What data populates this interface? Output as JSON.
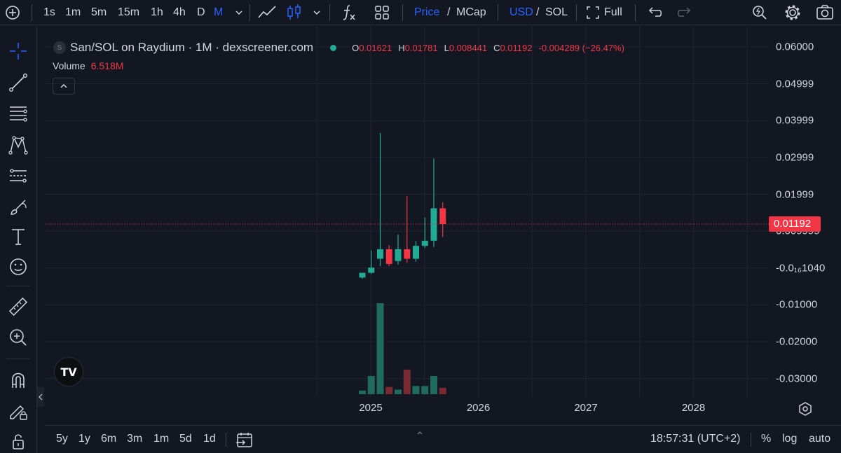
{
  "toolbar": {
    "intervals": [
      "1s",
      "1m",
      "5m",
      "15m",
      "1h",
      "4h",
      "D",
      "M"
    ],
    "active_interval": "M",
    "price_label": "Price",
    "slash": "/",
    "mcap_label": "MCap",
    "usd_label": "USD",
    "sol_label": "SOL",
    "full_label": "Full"
  },
  "legend": {
    "symbol_letter": "S",
    "title": "San/SOL on Raydium · 1M · dexscreener.com",
    "open_key": "O",
    "open": "0.01621",
    "high_key": "H",
    "high": "0.01781",
    "low_key": "L",
    "low": "0.008441",
    "close_key": "C",
    "close": "0.01192",
    "change": "-0.004289 (−26.47%)",
    "volume_label": "Volume",
    "volume_value": "6.518M"
  },
  "colors": {
    "up": "#22ab94",
    "down": "#f23645",
    "volume_up": "#1f6b5e",
    "volume_down": "#7a2a33",
    "accent": "#2962ff",
    "background": "#131722",
    "grid": "#1f2330"
  },
  "price_scale": {
    "ticks": [
      "0.06000",
      "0.04999",
      "0.03999",
      "0.02999",
      "0.01999",
      "0.009999",
      "-0.0₁₆1040",
      "-0.01000",
      "-0.02000",
      "-0.03000"
    ],
    "current_price": "0.01192"
  },
  "time_axis": {
    "ticks": [
      "2025",
      "2026",
      "2027",
      "2028"
    ]
  },
  "bottom_bar": {
    "ranges": [
      "5y",
      "1y",
      "6m",
      "3m",
      "1m",
      "5d",
      "1d"
    ],
    "clock": "18:57:31 (UTC+2)",
    "percent_label": "%",
    "log_label": "log",
    "auto_label": "auto"
  },
  "chart_data": {
    "type": "candlestick",
    "interval": "1M",
    "x": [
      "2024-12",
      "2025-01",
      "2025-02",
      "2025-03",
      "2025-04",
      "2025-05",
      "2025-06",
      "2025-07",
      "2025-08",
      "2025-09"
    ],
    "open": [
      -0.0026,
      -0.0013,
      0.0025,
      0.0051,
      0.0019,
      0.0051,
      0.0025,
      0.006,
      0.0074,
      0.0162
    ],
    "high": [
      -0.0016,
      0.0048,
      0.0366,
      0.0062,
      0.0091,
      0.0195,
      0.0073,
      0.0137,
      0.0297,
      0.0178
    ],
    "low": [
      -0.0029,
      -0.0016,
      0.0005,
      0.0005,
      0.0009,
      0.0014,
      0.0017,
      0.0054,
      0.0057,
      0.0084
    ],
    "close": [
      -0.0013,
      0.0001,
      0.0051,
      0.0011,
      0.0051,
      0.0025,
      0.006,
      0.0074,
      0.0162,
      0.0119
    ],
    "volume_relative": [
      0.04,
      0.2,
      1.0,
      0.08,
      0.05,
      0.27,
      0.09,
      0.09,
      0.2,
      0.07
    ],
    "ylim": [
      -0.0345,
      0.0625
    ],
    "x_ticks": [
      "2025",
      "2026",
      "2027",
      "2028"
    ],
    "current_price": 0.01192,
    "grid": true
  }
}
